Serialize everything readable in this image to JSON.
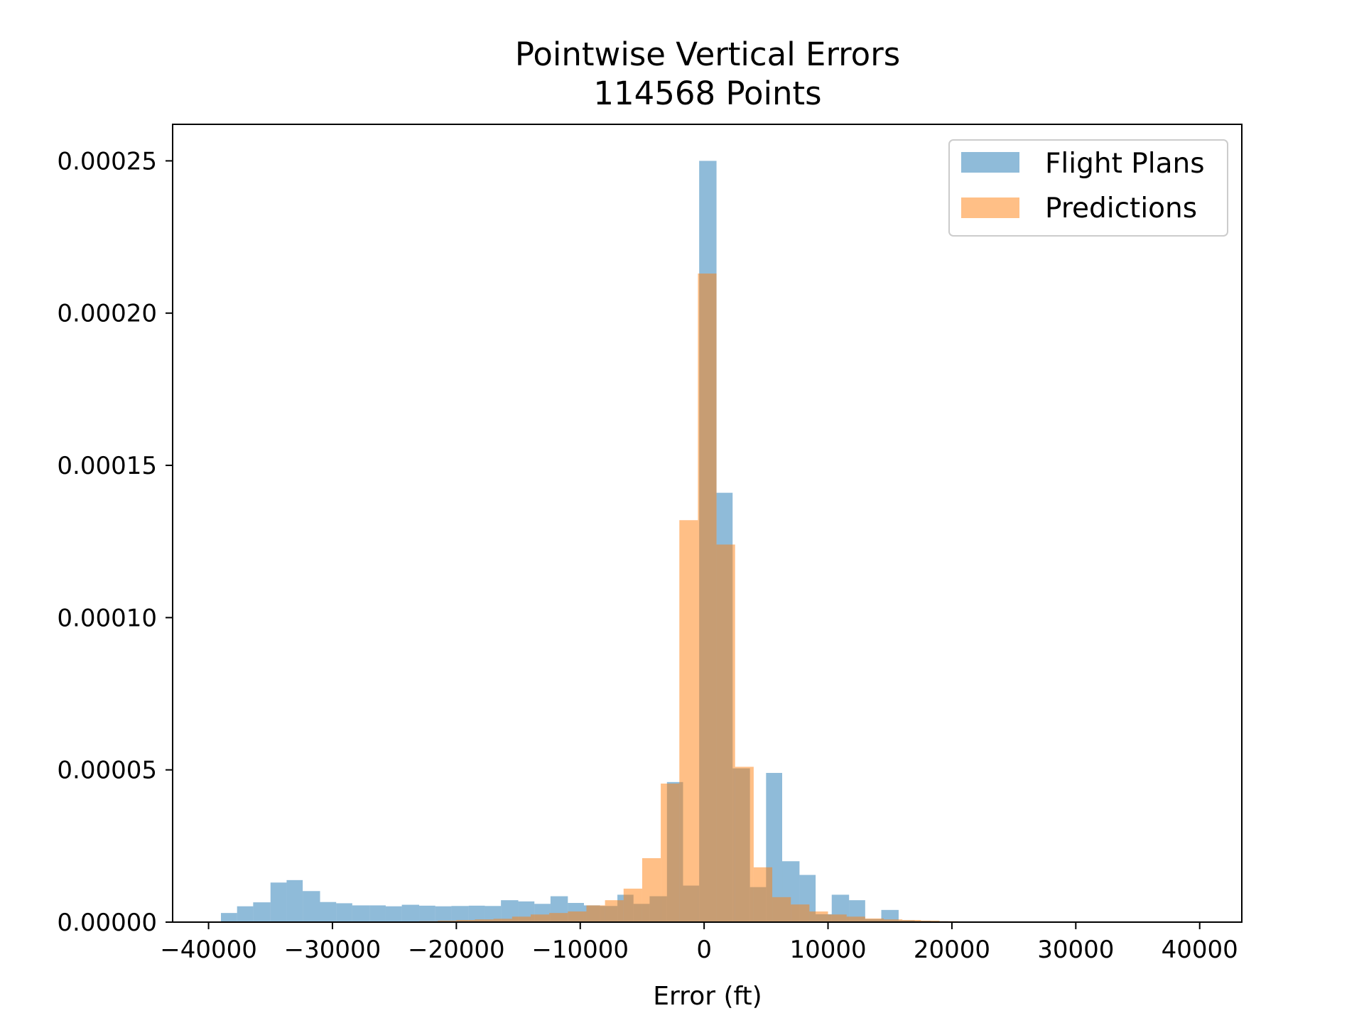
{
  "chart_data": {
    "type": "bar",
    "title": "Pointwise Vertical Errors",
    "subtitle": "114568 Points",
    "xlabel": "Error (ft)",
    "ylabel": "",
    "xlim": [
      -42900,
      43400
    ],
    "ylim": [
      0,
      0.000262
    ],
    "grid": false,
    "legend_position": "top-right",
    "xticks": [
      -40000,
      -30000,
      -20000,
      -10000,
      0,
      10000,
      20000,
      30000,
      40000
    ],
    "xtick_labels": [
      "−40000",
      "−30000",
      "−20000",
      "−10000",
      "0",
      "10000",
      "20000",
      "30000",
      "40000"
    ],
    "yticks": [
      0,
      5e-05,
      0.0001,
      0.00015,
      0.0002,
      0.00025
    ],
    "ytick_labels": [
      "0.00000",
      "0.00005",
      "0.00010",
      "0.00015",
      "0.00020",
      "0.00025"
    ],
    "series": [
      {
        "name": "Flight Plans",
        "color": "#1f77b4",
        "opacity": 0.5,
        "bins": [
          [
            -39000,
            -37700,
            3e-06
          ],
          [
            -37700,
            -36400,
            5.2e-06
          ],
          [
            -36400,
            -35000,
            6.5e-06
          ],
          [
            -35000,
            -33700,
            1.3e-05
          ],
          [
            -33700,
            -32400,
            1.38e-05
          ],
          [
            -32400,
            -31000,
            1.02e-05
          ],
          [
            -31000,
            -29700,
            6.6e-06
          ],
          [
            -29700,
            -28400,
            6.2e-06
          ],
          [
            -28400,
            -27000,
            5.5e-06
          ],
          [
            -27000,
            -25700,
            5.5e-06
          ],
          [
            -25700,
            -24400,
            5.2e-06
          ],
          [
            -24400,
            -23000,
            5.7e-06
          ],
          [
            -23000,
            -21700,
            5.4e-06
          ],
          [
            -21700,
            -20400,
            5.2e-06
          ],
          [
            -20400,
            -19000,
            5.3e-06
          ],
          [
            -19000,
            -17700,
            5.4e-06
          ],
          [
            -17700,
            -16400,
            5.3e-06
          ],
          [
            -16400,
            -15000,
            7.2e-06
          ],
          [
            -15000,
            -13700,
            6.8e-06
          ],
          [
            -13700,
            -12400,
            6e-06
          ],
          [
            -12400,
            -11000,
            8.5e-06
          ],
          [
            -11000,
            -9700,
            6.3e-06
          ],
          [
            -9700,
            -8400,
            5.5e-06
          ],
          [
            -8400,
            -7000,
            5.3e-06
          ],
          [
            -7000,
            -5700,
            9e-06
          ],
          [
            -5700,
            -4400,
            6e-06
          ],
          [
            -4400,
            -3000,
            8.5e-06
          ],
          [
            -3000,
            -1700,
            4.6e-05
          ],
          [
            -1700,
            -400,
            1.2e-05
          ],
          [
            -400,
            1000,
            0.00025
          ],
          [
            1000,
            2300,
            0.000141
          ],
          [
            2300,
            3700,
            5.05e-05
          ],
          [
            3700,
            5000,
            1.15e-05
          ],
          [
            5000,
            6300,
            4.9e-05
          ],
          [
            6300,
            7700,
            2e-05
          ],
          [
            7700,
            9000,
            1.55e-05
          ],
          [
            9000,
            10300,
            2.6e-06
          ],
          [
            10300,
            11700,
            9e-06
          ],
          [
            11700,
            13000,
            7.2e-06
          ],
          [
            13000,
            14300,
            1e-06
          ],
          [
            14300,
            15700,
            4e-06
          ],
          [
            15700,
            17000,
            6e-07
          ],
          [
            17000,
            18300,
            4e-07
          ],
          [
            18300,
            19700,
            3e-07
          ],
          [
            19700,
            21000,
            2e-07
          ]
        ]
      },
      {
        "name": "Predictions",
        "color": "#ff7f0e",
        "opacity": 0.5,
        "bins": [
          [
            -23000,
            -21500,
            3e-07
          ],
          [
            -21500,
            -20000,
            5e-07
          ],
          [
            -20000,
            -18500,
            7e-07
          ],
          [
            -18500,
            -17000,
            9e-07
          ],
          [
            -17000,
            -15500,
            1.1e-06
          ],
          [
            -15500,
            -14000,
            1.8e-06
          ],
          [
            -14000,
            -12500,
            2.5e-06
          ],
          [
            -12500,
            -11000,
            3e-06
          ],
          [
            -11000,
            -9500,
            3.5e-06
          ],
          [
            -9500,
            -8000,
            5.5e-06
          ],
          [
            -8000,
            -6500,
            7.2e-06
          ],
          [
            -6500,
            -5000,
            1.1e-05
          ],
          [
            -5000,
            -3500,
            2.1e-05
          ],
          [
            -3500,
            -2000,
            4.55e-05
          ],
          [
            -2000,
            -500,
            0.000132
          ],
          [
            -500,
            1000,
            0.000213
          ],
          [
            1000,
            2500,
            0.000124
          ],
          [
            2500,
            4000,
            5.1e-05
          ],
          [
            4000,
            5500,
            1.8e-05
          ],
          [
            5500,
            7000,
            8.2e-06
          ],
          [
            7000,
            8500,
            5.8e-06
          ],
          [
            8500,
            10000,
            3.5e-06
          ],
          [
            10000,
            11500,
            2.5e-06
          ],
          [
            11500,
            13000,
            1.8e-06
          ],
          [
            13000,
            14500,
            1.2e-06
          ],
          [
            14500,
            16000,
            9e-07
          ],
          [
            16000,
            17500,
            7e-07
          ],
          [
            17500,
            19000,
            5e-07
          ],
          [
            19000,
            20500,
            3e-07
          ],
          [
            20500,
            22000,
            2e-07
          ]
        ]
      }
    ]
  }
}
